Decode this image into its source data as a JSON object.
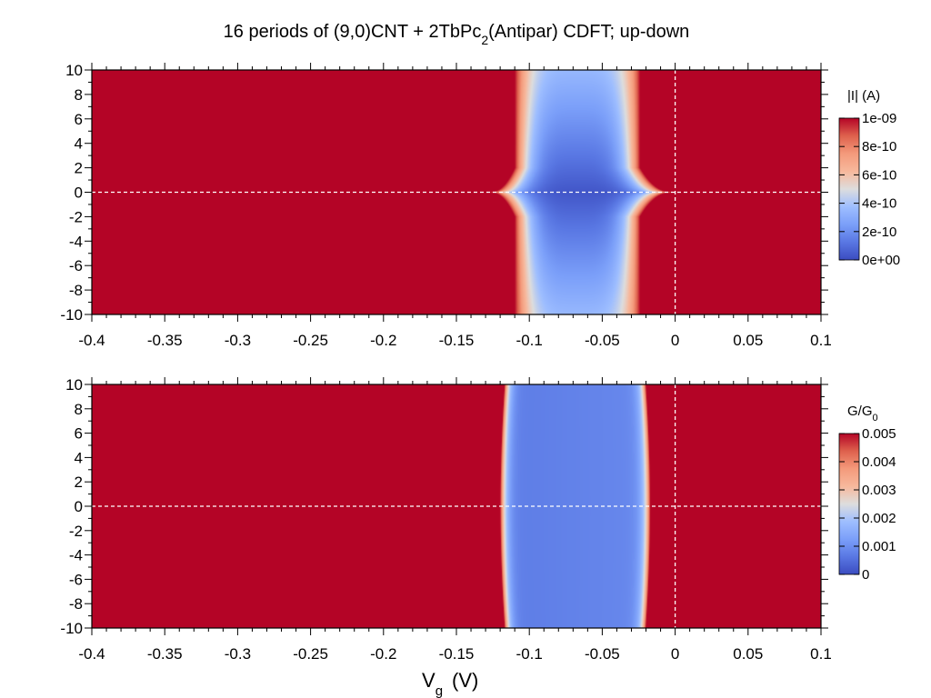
{
  "title": {
    "prefix": "16 periods of (9,0)CNT + 2TbPc",
    "sub": "2",
    "suffix": "(Antipar) CDFT; up-down"
  },
  "xlabel": {
    "main": "V",
    "sub": "g",
    "units": "(V)"
  },
  "chart_data": [
    {
      "type": "heatmap",
      "name": "current",
      "x_ticks": [
        "-0.4",
        "-0.35",
        "-0.3",
        "-0.25",
        "-0.2",
        "-0.15",
        "-0.1",
        "-0.05",
        "0",
        "0.05",
        "0.1"
      ],
      "y_ticks": [
        "10",
        "8",
        "6",
        "4",
        "2",
        "0",
        "-2",
        "-4",
        "-6",
        "-8",
        "-10"
      ],
      "xlim": [
        -0.4,
        0.1
      ],
      "ylim": [
        -10,
        10
      ],
      "colorbar": {
        "label": "|I| (A)",
        "ticks": [
          "1e-09",
          "8e-10",
          "6e-10",
          "4e-10",
          "2e-10",
          "0e+00"
        ],
        "range": [
          0,
          1e-09
        ]
      },
      "low_current_region": {
        "left_edge_at_y0": -0.127,
        "left_edge_at_ymax": -0.11,
        "right_edge_at_y0": -0.002,
        "right_edge_at_ymax": -0.024,
        "min_value_at": {
          "x": -0.065,
          "y": 0
        }
      },
      "reference_lines": {
        "vertical_x": 0,
        "horizontal_y": 0,
        "style": "dashed",
        "color": "#ffffff"
      }
    },
    {
      "type": "heatmap",
      "name": "conductance",
      "x_ticks": [
        "-0.4",
        "-0.35",
        "-0.3",
        "-0.25",
        "-0.2",
        "-0.15",
        "-0.1",
        "-0.05",
        "0",
        "0.05",
        "0.1"
      ],
      "y_ticks": [
        "10",
        "8",
        "6",
        "4",
        "2",
        "0",
        "-2",
        "-4",
        "-6",
        "-8",
        "-10"
      ],
      "xlim": [
        -0.4,
        0.1
      ],
      "ylim": [
        -10,
        10
      ],
      "colorbar": {
        "label_main": "G/G",
        "label_sub": "0",
        "ticks": [
          "0.005",
          "0.004",
          "0.003",
          "0.002",
          "0.001",
          "0"
        ],
        "range": [
          0,
          0.005
        ]
      },
      "low_conductance_region": {
        "left_edge_at_y0": -0.12,
        "left_edge_at_ymax": -0.117,
        "right_edge_at_y0": -0.017,
        "right_edge_at_ymax": -0.02,
        "min_value": 0.0008
      },
      "reference_lines": {
        "vertical_x": 0,
        "horizontal_y": 0,
        "style": "dashed",
        "color": "#ffffff"
      }
    }
  ],
  "colors": {
    "high": "#b40426",
    "mid": "#dddddd",
    "low": "#3b4cc0"
  }
}
